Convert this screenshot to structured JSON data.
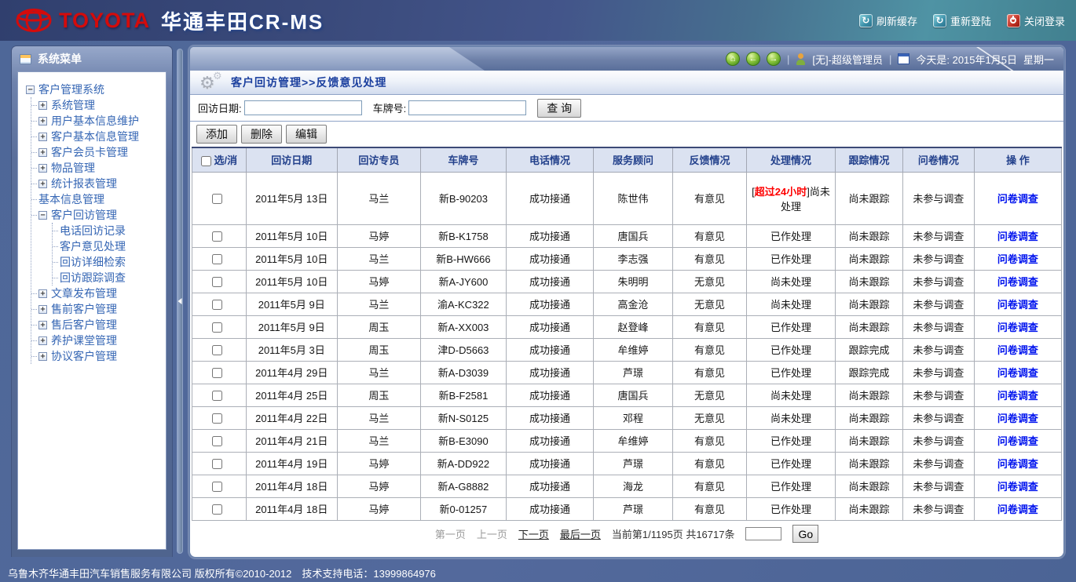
{
  "header": {
    "brand": "TOYOTA",
    "app_title": "华通丰田CR-MS",
    "actions": [
      {
        "label": "刷新缓存",
        "icon": "refresh-icon"
      },
      {
        "label": "重新登陆",
        "icon": "refresh-icon"
      },
      {
        "label": "关闭登录",
        "icon": "power-icon"
      }
    ]
  },
  "toolbar": {
    "separator": "|",
    "user": "[无]-超级管理员",
    "date_text": "今天是: 2015年1月5日",
    "weekday": "星期一"
  },
  "sidebar": {
    "title": "系统菜单",
    "tree": {
      "root": {
        "label": "客户管理系统",
        "state": "minus"
      },
      "items": [
        {
          "label": "系统管理",
          "state": "plus"
        },
        {
          "label": "用户基本信息维护",
          "state": "plus"
        },
        {
          "label": "客户基本信息管理",
          "state": "plus"
        },
        {
          "label": "客户会员卡管理",
          "state": "plus"
        },
        {
          "label": "物品管理",
          "state": "plus"
        },
        {
          "label": "统计报表管理",
          "state": "plus"
        },
        {
          "label": "基本信息管理",
          "state": "leaf"
        },
        {
          "label": "客户回访管理",
          "state": "minus",
          "children": [
            "电话回访记录",
            "客户意见处理",
            "回访详细检索",
            "回访跟踪调查"
          ]
        },
        {
          "label": "文章发布管理",
          "state": "plus"
        },
        {
          "label": "售前客户管理",
          "state": "plus"
        },
        {
          "label": "售后客户管理",
          "state": "plus"
        },
        {
          "label": "养护课堂管理",
          "state": "plus"
        },
        {
          "label": "协议客户管理",
          "state": "plus"
        }
      ]
    }
  },
  "main": {
    "breadcrumb": "客户回访管理>>反馈意见处理",
    "search": {
      "date_label": "回访日期:",
      "date_value": "",
      "plate_label": "车牌号:",
      "plate_value": "",
      "search_button": "查 询"
    },
    "action_buttons": [
      "添加",
      "删除",
      "编辑"
    ],
    "table": {
      "headers": [
        "选/消",
        "回访日期",
        "回访专员",
        "车牌号",
        "电话情况",
        "服务顾问",
        "反馈情况",
        "处理情况",
        "跟踪情况",
        "问卷情况",
        "操 作"
      ],
      "rows": [
        {
          "date": "2011年5月 13日",
          "agent": "马兰",
          "plate": "新B-90203",
          "phone": "成功接通",
          "advisor": "陈世伟",
          "feedback": "有意见",
          "process": "尚未处理",
          "process_alert": "超过24小时",
          "track": "尚未跟踪",
          "survey": "未参与调查",
          "action": "问卷调查"
        },
        {
          "date": "2011年5月 10日",
          "agent": "马婷",
          "plate": "新B-K1758",
          "phone": "成功接通",
          "advisor": "唐国兵",
          "feedback": "有意见",
          "process": "已作处理",
          "track": "尚未跟踪",
          "survey": "未参与调查",
          "action": "问卷调查"
        },
        {
          "date": "2011年5月 10日",
          "agent": "马兰",
          "plate": "新B-HW666",
          "phone": "成功接通",
          "advisor": "李志强",
          "feedback": "有意见",
          "process": "已作处理",
          "track": "尚未跟踪",
          "survey": "未参与调查",
          "action": "问卷调查"
        },
        {
          "date": "2011年5月 10日",
          "agent": "马婷",
          "plate": "新A-JY600",
          "phone": "成功接通",
          "advisor": "朱明明",
          "feedback": "无意见",
          "process": "尚未处理",
          "track": "尚未跟踪",
          "survey": "未参与调查",
          "action": "问卷调查"
        },
        {
          "date": "2011年5月 9日",
          "agent": "马兰",
          "plate": "渝A-KC322",
          "phone": "成功接通",
          "advisor": "高金沧",
          "feedback": "无意见",
          "process": "尚未处理",
          "track": "尚未跟踪",
          "survey": "未参与调查",
          "action": "问卷调查"
        },
        {
          "date": "2011年5月 9日",
          "agent": "周玉",
          "plate": "新A-XX003",
          "phone": "成功接通",
          "advisor": "赵登峰",
          "feedback": "有意见",
          "process": "已作处理",
          "track": "尚未跟踪",
          "survey": "未参与调查",
          "action": "问卷调查"
        },
        {
          "date": "2011年5月 3日",
          "agent": "周玉",
          "plate": "津D-D5663",
          "phone": "成功接通",
          "advisor": "牟维婷",
          "feedback": "有意见",
          "process": "已作处理",
          "track": "跟踪完成",
          "survey": "未参与调查",
          "action": "问卷调查"
        },
        {
          "date": "2011年4月 29日",
          "agent": "马兰",
          "plate": "新A-D3039",
          "phone": "成功接通",
          "advisor": "芦璟",
          "feedback": "有意见",
          "process": "已作处理",
          "track": "跟踪完成",
          "survey": "未参与调查",
          "action": "问卷调查"
        },
        {
          "date": "2011年4月 25日",
          "agent": "周玉",
          "plate": "新B-F2581",
          "phone": "成功接通",
          "advisor": "唐国兵",
          "feedback": "无意见",
          "process": "尚未处理",
          "track": "尚未跟踪",
          "survey": "未参与调查",
          "action": "问卷调查"
        },
        {
          "date": "2011年4月 22日",
          "agent": "马兰",
          "plate": "新N-S0125",
          "phone": "成功接通",
          "advisor": "邓程",
          "feedback": "无意见",
          "process": "尚未处理",
          "track": "尚未跟踪",
          "survey": "未参与调查",
          "action": "问卷调查"
        },
        {
          "date": "2011年4月 21日",
          "agent": "马兰",
          "plate": "新B-E3090",
          "phone": "成功接通",
          "advisor": "牟维婷",
          "feedback": "有意见",
          "process": "已作处理",
          "track": "尚未跟踪",
          "survey": "未参与调查",
          "action": "问卷调查"
        },
        {
          "date": "2011年4月 19日",
          "agent": "马婷",
          "plate": "新A-DD922",
          "phone": "成功接通",
          "advisor": "芦璟",
          "feedback": "有意见",
          "process": "已作处理",
          "track": "尚未跟踪",
          "survey": "未参与调查",
          "action": "问卷调查"
        },
        {
          "date": "2011年4月 18日",
          "agent": "马婷",
          "plate": "新A-G8882",
          "phone": "成功接通",
          "advisor": "海龙",
          "feedback": "有意见",
          "process": "已作处理",
          "track": "尚未跟踪",
          "survey": "未参与调查",
          "action": "问卷调查"
        },
        {
          "date": "2011年4月 18日",
          "agent": "马婷",
          "plate": "新0-01257",
          "phone": "成功接通",
          "advisor": "芦璟",
          "feedback": "有意见",
          "process": "已作处理",
          "track": "尚未跟踪",
          "survey": "未参与调查",
          "action": "问卷调查"
        }
      ]
    },
    "pagination": {
      "first": "第一页",
      "prev": "上一页",
      "next": "下一页",
      "last": "最后一页",
      "status": "当前第1/1195页 共16717条",
      "go_value": "",
      "go_button": "Go"
    }
  },
  "footer": {
    "text": "乌鲁木齐华通丰田汽车销售服务有限公司 版权所有©2010-2012　技术支持电话：13999864976"
  },
  "colors": {
    "alert_red": "#fe0000",
    "link_blue": "#0013ee",
    "title_blue": "#1b3f9e",
    "brand_red": "#d40b0b"
  }
}
